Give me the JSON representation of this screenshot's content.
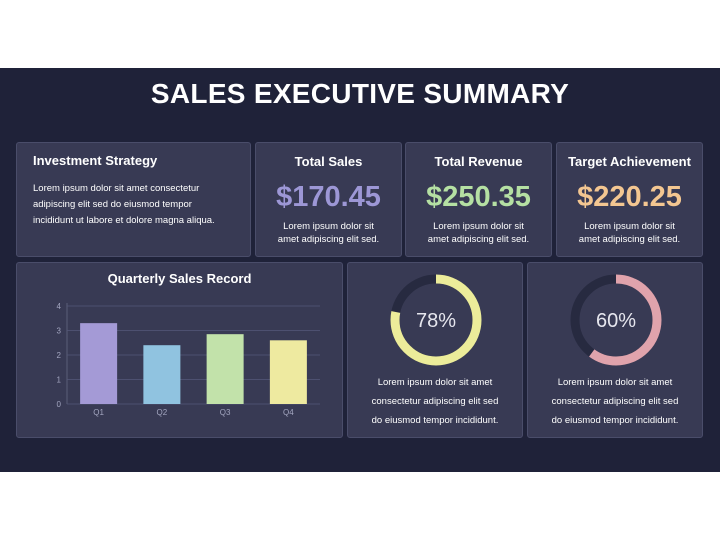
{
  "title": "SALES EXECUTIVE SUMMARY",
  "investment": {
    "heading": "Investment Strategy",
    "lines": [
      "Lorem ipsum dolor sit amet consectetur",
      "adipiscing elit sed do eiusmod tempor",
      "incididunt ut labore et dolore magna aliqua."
    ]
  },
  "metrics": [
    {
      "heading": "Total Sales",
      "value": "$170.45",
      "color": "#9d97d6",
      "desc": [
        "Lorem ipsum dolor sit",
        "amet adipiscing elit sed."
      ]
    },
    {
      "heading": "Total Revenue",
      "value": "$250.35",
      "color": "#b5e0a3",
      "desc": [
        "Lorem ipsum dolor sit",
        "amet adipiscing elit sed."
      ]
    },
    {
      "heading": "Target Achievement",
      "value": "$220.25",
      "color": "#f3c691",
      "desc": [
        "Lorem ipsum dolor sit",
        "amet adipiscing elit sed."
      ]
    }
  ],
  "chart_title": "Quarterly Sales Record",
  "chart_data": {
    "type": "bar",
    "title": "Quarterly Sales Record",
    "categories": [
      "Q1",
      "Q2",
      "Q3",
      "Q4"
    ],
    "values": [
      3.3,
      2.4,
      2.85,
      2.6
    ],
    "colors": [
      "#a49ad6",
      "#90c3e0",
      "#c2e2aa",
      "#eeeaa0"
    ],
    "ylim": [
      0,
      4
    ],
    "yticks": [
      "0",
      "1",
      "2",
      "3",
      "4"
    ],
    "grid": true
  },
  "donuts": [
    {
      "label": "78%",
      "percent": 78,
      "color": "#ecec9a",
      "desc": [
        "Lorem ipsum dolor sit amet",
        "consectetur adipiscing elit sed",
        "do eiusmod tempor incididunt."
      ]
    },
    {
      "label": "60%",
      "percent": 60,
      "color": "#e0a3ac",
      "desc": [
        "Lorem ipsum dolor sit amet",
        "consectetur adipiscing elit sed",
        "do eiusmod tempor incididunt."
      ]
    }
  ]
}
